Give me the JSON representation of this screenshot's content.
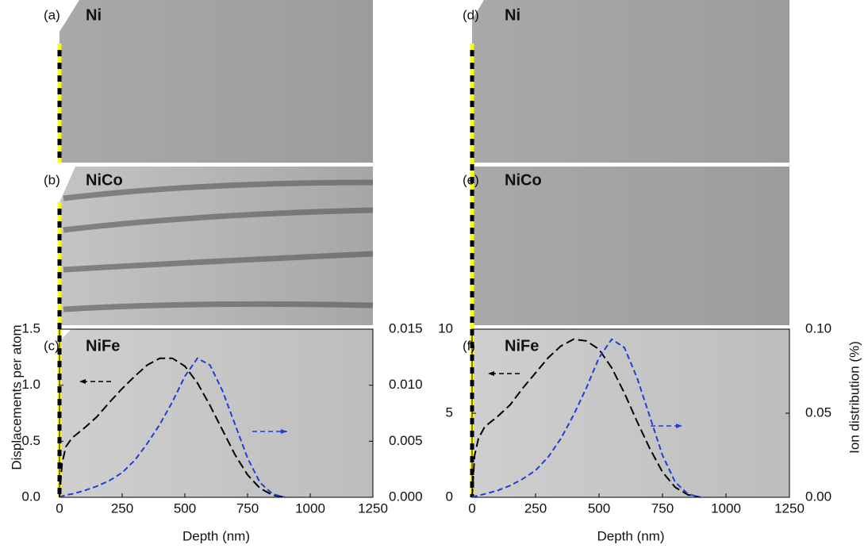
{
  "panels": [
    {
      "tag": "(a)",
      "name": "Ni"
    },
    {
      "tag": "(b)",
      "name": "NiCo"
    },
    {
      "tag": "(c)",
      "name": "NiFe"
    },
    {
      "tag": "(d)",
      "name": "Ni"
    },
    {
      "tag": "(e)",
      "name": "NiCo"
    },
    {
      "tag": "(f)",
      "name": "NiFe"
    }
  ],
  "chart_data": [
    {
      "type": "line",
      "xlabel": "Depth (nm)",
      "ylabel": "Displacements per atom",
      "xlim": [
        0,
        1250
      ],
      "xticks": [
        0,
        250,
        500,
        750,
        1000,
        1250
      ],
      "ylim": [
        0,
        1.5
      ],
      "yticks": [
        {
          "value": 0,
          "label": "0.0"
        },
        {
          "value": 0.5,
          "label": "0.5"
        },
        {
          "value": 1,
          "label": "1.0"
        },
        {
          "value": 1.5,
          "label": "1.5"
        }
      ],
      "y2lim": [
        0,
        0.015
      ],
      "y2ticks": [
        {
          "value": 0,
          "label": "0.000"
        },
        {
          "value": 0.005,
          "label": "0.005"
        },
        {
          "value": 0.01,
          "label": "0.010"
        },
        {
          "value": 0.015,
          "label": "0.015"
        }
      ],
      "x": [
        0,
        10,
        25,
        50,
        100,
        150,
        200,
        250,
        300,
        350,
        400,
        450,
        500,
        550,
        600,
        650,
        700,
        750,
        800,
        850,
        900
      ],
      "series": [
        {
          "color": "#000000",
          "values": [
            0,
            0.3,
            0.45,
            0.53,
            0.62,
            0.72,
            0.85,
            0.97,
            1.08,
            1.18,
            1.24,
            1.24,
            1.17,
            1.02,
            0.82,
            0.6,
            0.38,
            0.2,
            0.08,
            0.02,
            0
          ]
        },
        {
          "color": "#1f3fd6",
          "axis": "y2",
          "values": [
            0,
            0.0001,
            0.0002,
            0.0003,
            0.0006,
            0.001,
            0.0015,
            0.0022,
            0.0033,
            0.0048,
            0.0065,
            0.0085,
            0.0108,
            0.0124,
            0.0118,
            0.0095,
            0.0065,
            0.0035,
            0.0013,
            0.0003,
            0
          ]
        }
      ]
    },
    {
      "type": "line",
      "xlabel": "Depth (nm)",
      "y2label": "Ion distribution (%)",
      "xlim": [
        0,
        1250
      ],
      "xticks": [
        0,
        250,
        500,
        750,
        1000,
        1250
      ],
      "ylim": [
        0,
        10
      ],
      "yticks": [
        0,
        5,
        10
      ],
      "y2lim": [
        0,
        0.1
      ],
      "y2ticks": [
        {
          "value": 0,
          "label": "0.00"
        },
        {
          "value": 0.05,
          "label": "0.05"
        },
        {
          "value": 0.1,
          "label": "0.10"
        }
      ],
      "x": [
        0,
        10,
        25,
        50,
        100,
        150,
        200,
        250,
        300,
        350,
        400,
        450,
        500,
        550,
        600,
        650,
        700,
        750,
        800,
        850,
        900
      ],
      "series": [
        {
          "color": "#000000",
          "values": [
            0,
            2.5,
            3.5,
            4.2,
            4.8,
            5.5,
            6.5,
            7.4,
            8.3,
            9.0,
            9.4,
            9.3,
            8.8,
            7.7,
            6.2,
            4.5,
            2.9,
            1.5,
            0.6,
            0.15,
            0
          ]
        },
        {
          "color": "#1f3fd6",
          "axis": "y2",
          "values": [
            0,
            0.0005,
            0.001,
            0.002,
            0.004,
            0.007,
            0.011,
            0.016,
            0.024,
            0.035,
            0.049,
            0.065,
            0.083,
            0.094,
            0.089,
            0.071,
            0.048,
            0.025,
            0.009,
            0.002,
            0
          ]
        }
      ]
    }
  ]
}
